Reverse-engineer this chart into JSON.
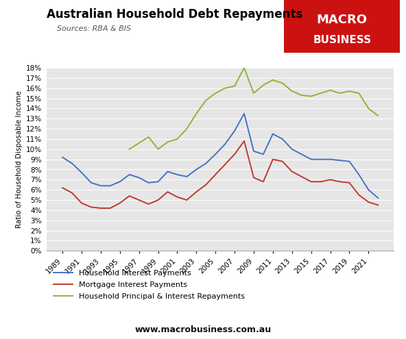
{
  "title": "Australian Household Debt Repayments",
  "subtitle": "Sources: RBA & BIS",
  "ylabel": "Ratio of Household Disposable Income",
  "website": "www.macrobusiness.com.au",
  "background_color": "#e6e6e6",
  "title_color": "#000000",
  "logo_bg_color": "#cc1111",
  "logo_text1": "MACRO",
  "logo_text2": "BUSINESS",
  "ylim": [
    0,
    0.18
  ],
  "yticks": [
    0.0,
    0.01,
    0.02,
    0.03,
    0.04,
    0.05,
    0.06,
    0.07,
    0.08,
    0.09,
    0.1,
    0.11,
    0.12,
    0.13,
    0.14,
    0.15,
    0.16,
    0.17,
    0.18
  ],
  "years": [
    1989,
    1990,
    1991,
    1992,
    1993,
    1994,
    1995,
    1996,
    1997,
    1998,
    1999,
    2000,
    2001,
    2002,
    2003,
    2004,
    2005,
    2006,
    2007,
    2008,
    2009,
    2010,
    2011,
    2012,
    2013,
    2014,
    2015,
    2016,
    2017,
    2018,
    2019,
    2020,
    2021,
    2022
  ],
  "household_interest": [
    0.092,
    0.086,
    0.077,
    0.067,
    0.064,
    0.064,
    0.068,
    0.075,
    0.072,
    0.067,
    0.068,
    0.078,
    0.075,
    0.073,
    0.08,
    0.086,
    0.095,
    0.105,
    0.118,
    0.135,
    0.098,
    0.095,
    0.115,
    0.11,
    0.1,
    0.095,
    0.09,
    0.09,
    0.09,
    0.089,
    0.088,
    0.075,
    0.06,
    0.052
  ],
  "mortgage_interest": [
    0.062,
    0.057,
    0.047,
    0.043,
    0.042,
    0.042,
    0.047,
    0.054,
    0.05,
    0.046,
    0.05,
    0.058,
    0.053,
    0.05,
    0.058,
    0.065,
    0.075,
    0.085,
    0.095,
    0.108,
    0.072,
    0.068,
    0.09,
    0.088,
    0.078,
    0.073,
    0.068,
    0.068,
    0.07,
    0.068,
    0.067,
    0.055,
    0.048,
    0.045
  ],
  "principal_interest": [
    null,
    null,
    null,
    null,
    null,
    null,
    null,
    0.1,
    0.106,
    0.112,
    0.1,
    0.107,
    0.11,
    0.12,
    0.135,
    0.148,
    0.155,
    0.16,
    0.162,
    0.18,
    0.155,
    0.163,
    0.168,
    0.165,
    0.157,
    0.153,
    0.152,
    0.155,
    0.158,
    0.155,
    0.157,
    0.155,
    0.14,
    0.133
  ],
  "blue_color": "#4472c4",
  "red_color": "#c0392b",
  "green_color": "#8db536",
  "legend_labels": [
    "Household Interest Payments",
    "Mortgage Interest Payments",
    "Household Principal & Interest Repayments"
  ]
}
